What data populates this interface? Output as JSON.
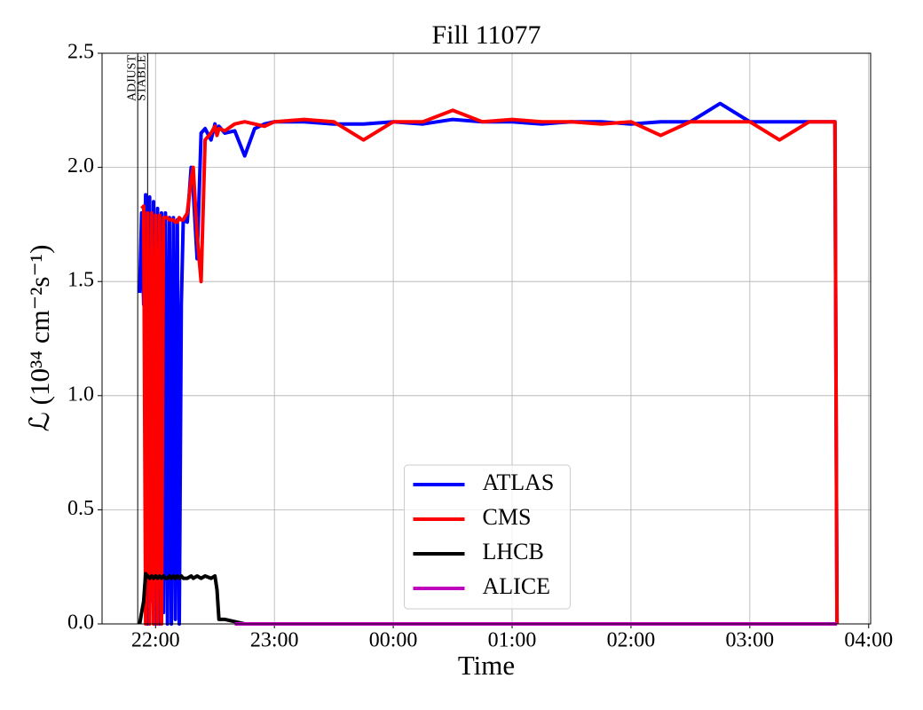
{
  "chart_data": {
    "type": "line",
    "title": "Fill 11077",
    "x_label": "Time",
    "y_label": "ℒ (10³⁴ cm⁻²s⁻¹)",
    "x": [
      "21:51",
      "21:52",
      "21:53",
      "21:54",
      "21:55",
      "21:56",
      "21:57",
      "21:58",
      "21:59",
      "22:00",
      "22:01",
      "22:02",
      "22:03",
      "22:04",
      "22:05",
      "22:06",
      "22:07",
      "22:08",
      "22:09",
      "22:10",
      "22:11",
      "22:12",
      "22:13",
      "22:14",
      "22:16",
      "22:18",
      "22:19",
      "22:21",
      "22:23",
      "22:25",
      "22:28",
      "22:30",
      "22:31",
      "22:32",
      "22:35",
      "22:40",
      "22:45",
      "22:50",
      "22:55",
      "23:00",
      "23:15",
      "23:30",
      "23:45",
      "00:00",
      "00:15",
      "00:30",
      "00:45",
      "01:00",
      "01:15",
      "01:30",
      "01:45",
      "02:00",
      "02:15",
      "02:30",
      "02:45",
      "03:00",
      "03:15",
      "03:30",
      "03:43",
      "03:44"
    ],
    "series": [
      {
        "name": "ATLAS",
        "color": "#0000ff",
        "values": [
          null,
          1.45,
          1.8,
          1.4,
          1.88,
          0.0,
          1.87,
          0.1,
          1.85,
          0.0,
          1.82,
          0.0,
          1.8,
          0.05,
          1.8,
          0.0,
          1.78,
          0.0,
          1.78,
          0.02,
          1.77,
          0.0,
          1.4,
          1.77,
          1.76,
          2.0,
          1.9,
          1.6,
          2.15,
          2.17,
          2.12,
          2.19,
          2.15,
          2.18,
          2.15,
          2.16,
          2.05,
          2.17,
          2.19,
          2.2,
          2.2,
          2.19,
          2.19,
          2.2,
          2.19,
          2.21,
          2.2,
          2.2,
          2.19,
          2.2,
          2.2,
          2.19,
          2.2,
          2.2,
          2.28,
          2.2,
          2.2,
          2.2,
          2.2,
          0.0
        ]
      },
      {
        "name": "CMS",
        "color": "#ff0000",
        "values": [
          null,
          null,
          1.82,
          1.83,
          0.0,
          1.8,
          0.0,
          1.8,
          0.0,
          1.79,
          0.0,
          1.79,
          0.0,
          1.78,
          1.78,
          1.78,
          1.77,
          1.77,
          1.77,
          1.76,
          1.76,
          1.78,
          1.77,
          1.77,
          1.8,
          1.95,
          2.0,
          1.7,
          1.5,
          2.12,
          2.15,
          2.18,
          2.14,
          2.17,
          2.16,
          2.19,
          2.2,
          2.19,
          2.18,
          2.2,
          2.21,
          2.2,
          2.12,
          2.2,
          2.2,
          2.25,
          2.2,
          2.21,
          2.2,
          2.2,
          2.19,
          2.2,
          2.14,
          2.2,
          2.2,
          2.2,
          2.12,
          2.2,
          2.2,
          0.0
        ]
      },
      {
        "name": "LHCB",
        "color": "#000000",
        "values": [
          null,
          0.0,
          0.05,
          0.1,
          0.22,
          0.21,
          0.2,
          0.21,
          0.2,
          0.21,
          0.2,
          0.21,
          0.2,
          0.21,
          0.2,
          0.2,
          0.21,
          0.2,
          0.21,
          0.2,
          0.21,
          0.2,
          0.21,
          0.2,
          0.2,
          0.21,
          0.2,
          0.21,
          0.2,
          0.21,
          0.2,
          0.21,
          0.15,
          0.02,
          0.02,
          0.01,
          0.0,
          null,
          null,
          null,
          null,
          null,
          null,
          null,
          null,
          null,
          null,
          null,
          null,
          null,
          null,
          null,
          null,
          null,
          null,
          null,
          null,
          null,
          null,
          null
        ]
      },
      {
        "name": "ALICE",
        "color": "#bf00bf",
        "values": [
          null,
          null,
          null,
          null,
          null,
          null,
          null,
          null,
          null,
          null,
          null,
          null,
          null,
          null,
          null,
          null,
          null,
          null,
          null,
          null,
          null,
          null,
          null,
          null,
          null,
          null,
          null,
          null,
          null,
          null,
          null,
          null,
          null,
          null,
          null,
          0.0,
          0.0,
          0.0,
          0.0,
          0.0,
          0.0,
          0.0,
          0.0,
          0.0,
          0.0,
          0.0,
          0.0,
          0.0,
          0.0,
          0.0,
          0.0,
          0.0,
          0.0,
          0.0,
          0.0,
          0.0,
          0.0,
          0.0,
          0.0,
          0.0
        ]
      }
    ],
    "xlim": [
      "21:33",
      "04:01"
    ],
    "xticks": [
      "22:00",
      "23:00",
      "00:00",
      "01:00",
      "02:00",
      "03:00",
      "04:00"
    ],
    "ylim": [
      0,
      2.5
    ],
    "yticks": [
      {
        "value": 0,
        "label": "0.0"
      },
      0.5,
      {
        "value": 1,
        "label": "1.0"
      },
      1.5,
      {
        "value": 2,
        "label": "2.0"
      },
      2.5
    ],
    "annotations": [
      {
        "text": "ADJUST",
        "x": "21:51"
      },
      {
        "text": "STABLE",
        "x": "21:56"
      }
    ],
    "grid": true,
    "legend": "lower center"
  }
}
